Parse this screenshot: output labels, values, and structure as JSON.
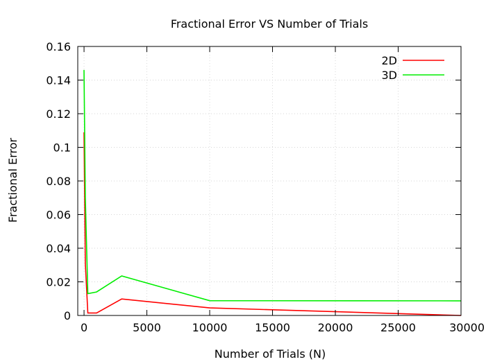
{
  "chart_data": {
    "type": "line",
    "title": "Fractional Error VS Number of Trials",
    "xlabel": "Number of Trials (N)",
    "ylabel": "Fractional Error",
    "xlim": [
      -500,
      30000
    ],
    "ylim": [
      0,
      0.16
    ],
    "xticks": [
      0,
      5000,
      10000,
      15000,
      20000,
      25000,
      30000
    ],
    "xtick_labels": [
      "0",
      "5000",
      "10000",
      "15000",
      "20000",
      "25000",
      "30000"
    ],
    "yticks": [
      0,
      0.02,
      0.04,
      0.06,
      0.08,
      0.1,
      0.12,
      0.14,
      0.16
    ],
    "ytick_labels": [
      "0",
      "0.02",
      "0.04",
      "0.06",
      "0.08",
      "0.1",
      "0.12",
      "0.14",
      "0.16"
    ],
    "grid": true,
    "legend": "top-right",
    "series": [
      {
        "name": "2D",
        "color": "#ff0000",
        "x": [
          0,
          100,
          300,
          1000,
          3000,
          10000,
          30000
        ],
        "y": [
          0.109,
          0.031,
          0.0015,
          0.0015,
          0.0098,
          0.0045,
          0.0
        ]
      },
      {
        "name": "3D",
        "color": "#00ee00",
        "x": [
          0,
          100,
          300,
          1000,
          3000,
          10000,
          30000
        ],
        "y": [
          0.146,
          0.07,
          0.013,
          0.014,
          0.0235,
          0.0088,
          0.0087
        ]
      }
    ]
  }
}
